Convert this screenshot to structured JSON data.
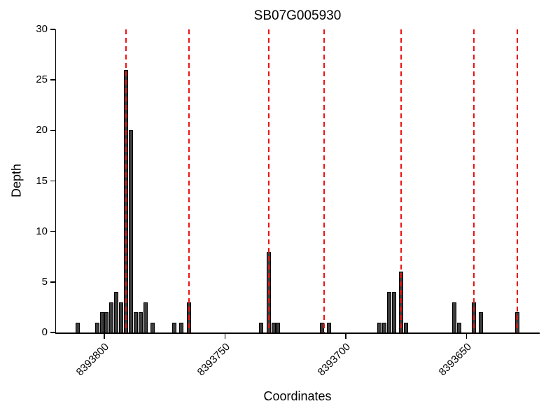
{
  "chart_data": {
    "type": "bar",
    "title": "SB07G005930",
    "xlabel": "Coordinates",
    "ylabel": "Depth",
    "ylim": [
      0,
      30
    ],
    "yticks": [
      0,
      5,
      10,
      15,
      20,
      25,
      30
    ],
    "x_axis_reversed": true,
    "xlim_left": 8393820,
    "xlim_right": 8393620,
    "xticks": [
      8393800,
      8393750,
      8393700,
      8393650
    ],
    "bar_fill_color": "#3d3d3d",
    "bar_edge_color": "#000000",
    "marker_line_color": "#ee1111",
    "marker_line_style": "dashed",
    "legend": "none",
    "grid": false,
    "bars": [
      {
        "x": 8393811,
        "h": 1
      },
      {
        "x": 8393803,
        "h": 1
      },
      {
        "x": 8393801,
        "h": 2
      },
      {
        "x": 8393799,
        "h": 2
      },
      {
        "x": 8393797,
        "h": 3
      },
      {
        "x": 8393795,
        "h": 4
      },
      {
        "x": 8393793,
        "h": 3
      },
      {
        "x": 8393791,
        "h": 26
      },
      {
        "x": 8393789,
        "h": 20
      },
      {
        "x": 8393787,
        "h": 2
      },
      {
        "x": 8393785,
        "h": 2
      },
      {
        "x": 8393783,
        "h": 3
      },
      {
        "x": 8393780,
        "h": 1
      },
      {
        "x": 8393771,
        "h": 1
      },
      {
        "x": 8393768,
        "h": 1
      },
      {
        "x": 8393765,
        "h": 3
      },
      {
        "x": 8393735,
        "h": 1
      },
      {
        "x": 8393732,
        "h": 8
      },
      {
        "x": 8393730,
        "h": 1
      },
      {
        "x": 8393728,
        "h": 1
      },
      {
        "x": 8393710,
        "h": 1
      },
      {
        "x": 8393707,
        "h": 1
      },
      {
        "x": 8393686,
        "h": 1
      },
      {
        "x": 8393684,
        "h": 1
      },
      {
        "x": 8393682,
        "h": 4
      },
      {
        "x": 8393680,
        "h": 4
      },
      {
        "x": 8393677,
        "h": 6
      },
      {
        "x": 8393675,
        "h": 1
      },
      {
        "x": 8393655,
        "h": 3
      },
      {
        "x": 8393653,
        "h": 1
      },
      {
        "x": 8393647,
        "h": 3
      },
      {
        "x": 8393644,
        "h": 2
      },
      {
        "x": 8393629,
        "h": 2
      }
    ],
    "vlines": [
      8393791,
      8393765,
      8393732,
      8393709,
      8393677,
      8393647,
      8393629
    ]
  }
}
